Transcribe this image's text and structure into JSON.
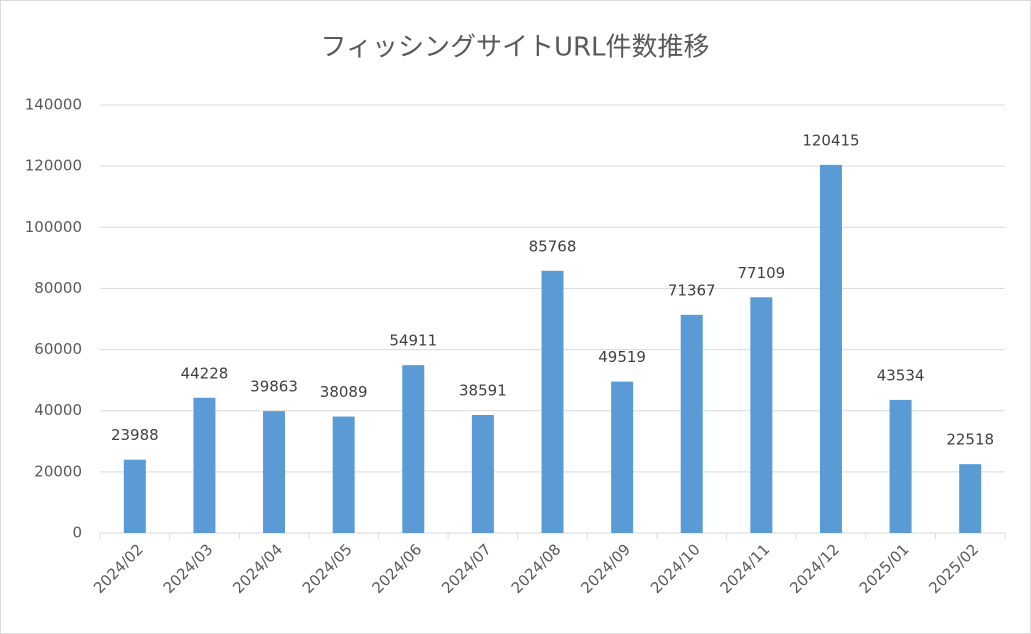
{
  "chart_data": {
    "type": "bar",
    "title": "フィッシングサイトURL件数推移",
    "categories": [
      "2024/02",
      "2024/03",
      "2024/04",
      "2024/05",
      "2024/06",
      "2024/07",
      "2024/08",
      "2024/09",
      "2024/10",
      "2024/11",
      "2024/12",
      "2025/01",
      "2025/02"
    ],
    "values": [
      23988,
      44228,
      39863,
      38089,
      54911,
      38591,
      85768,
      49519,
      71367,
      77109,
      120415,
      43534,
      22518
    ],
    "color": "#5b9bd5",
    "ylim": [
      0,
      140000
    ],
    "yticks": [
      0,
      20000,
      40000,
      60000,
      80000,
      100000,
      120000,
      140000
    ],
    "grid": true
  }
}
